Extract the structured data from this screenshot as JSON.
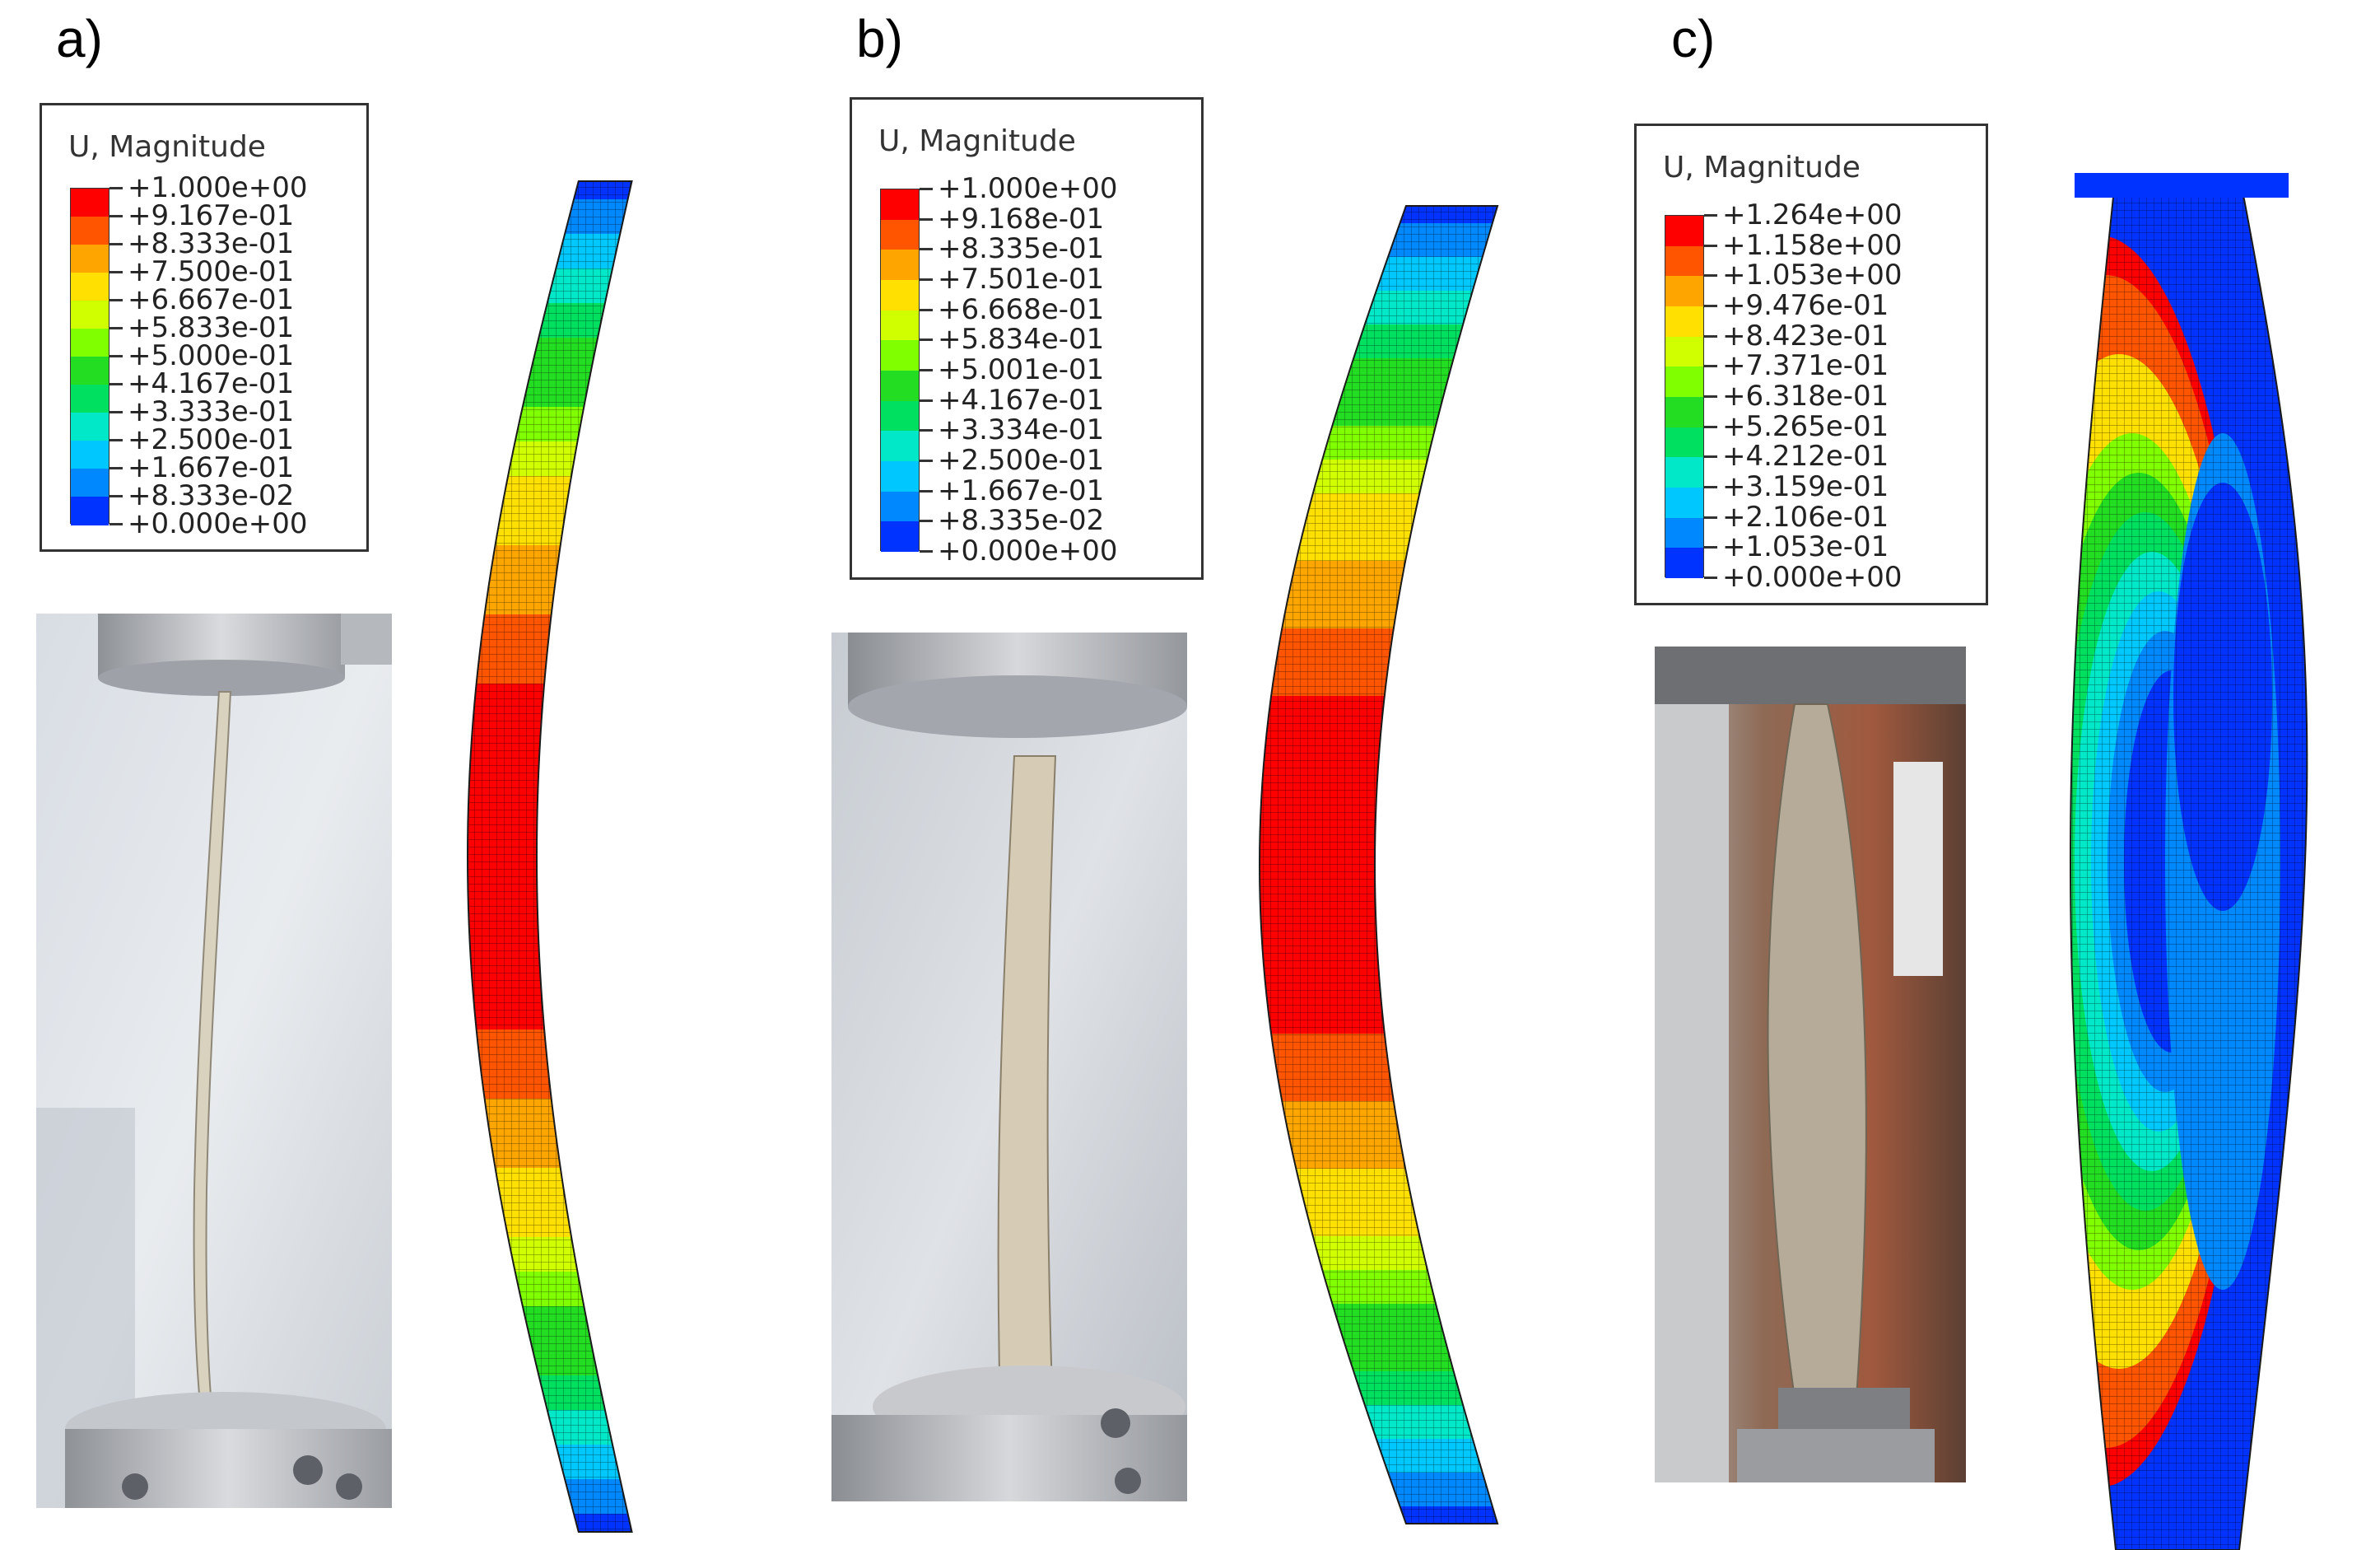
{
  "panels": [
    {
      "label": "a)",
      "legend_title": "U, Magnitude",
      "values": [
        "+1.000e+00",
        "+9.167e-01",
        "+8.333e-01",
        "+7.500e-01",
        "+6.667e-01",
        "+5.833e-01",
        "+5.000e-01",
        "+4.167e-01",
        "+3.333e-01",
        "+2.500e-01",
        "+1.667e-01",
        "+8.333e-02",
        "+0.000e+00"
      ]
    },
    {
      "label": "b)",
      "legend_title": "U, Magnitude",
      "values": [
        "+1.000e+00",
        "+9.168e-01",
        "+8.335e-01",
        "+7.501e-01",
        "+6.668e-01",
        "+5.834e-01",
        "+5.001e-01",
        "+4.167e-01",
        "+3.334e-01",
        "+2.500e-01",
        "+1.667e-01",
        "+8.335e-02",
        "+0.000e+00"
      ]
    },
    {
      "label": "c)",
      "legend_title": "U, Magnitude",
      "values": [
        "+1.264e+00",
        "+1.158e+00",
        "+1.053e+00",
        "+9.476e-01",
        "+8.423e-01",
        "+7.371e-01",
        "+6.318e-01",
        "+5.265e-01",
        "+4.212e-01",
        "+3.159e-01",
        "+2.106e-01",
        "+1.053e-01",
        "+0.000e+00"
      ]
    }
  ],
  "colormap": [
    "#ff0000",
    "#ff5500",
    "#ffa500",
    "#ffe000",
    "#d0ff00",
    "#80ff00",
    "#22dd22",
    "#00e060",
    "#00e8c8",
    "#00c8ff",
    "#0088ff",
    "#0033ff"
  ],
  "colors": {
    "background": "#ffffff",
    "frame": "#333333",
    "mesh_dark": "#000000"
  }
}
